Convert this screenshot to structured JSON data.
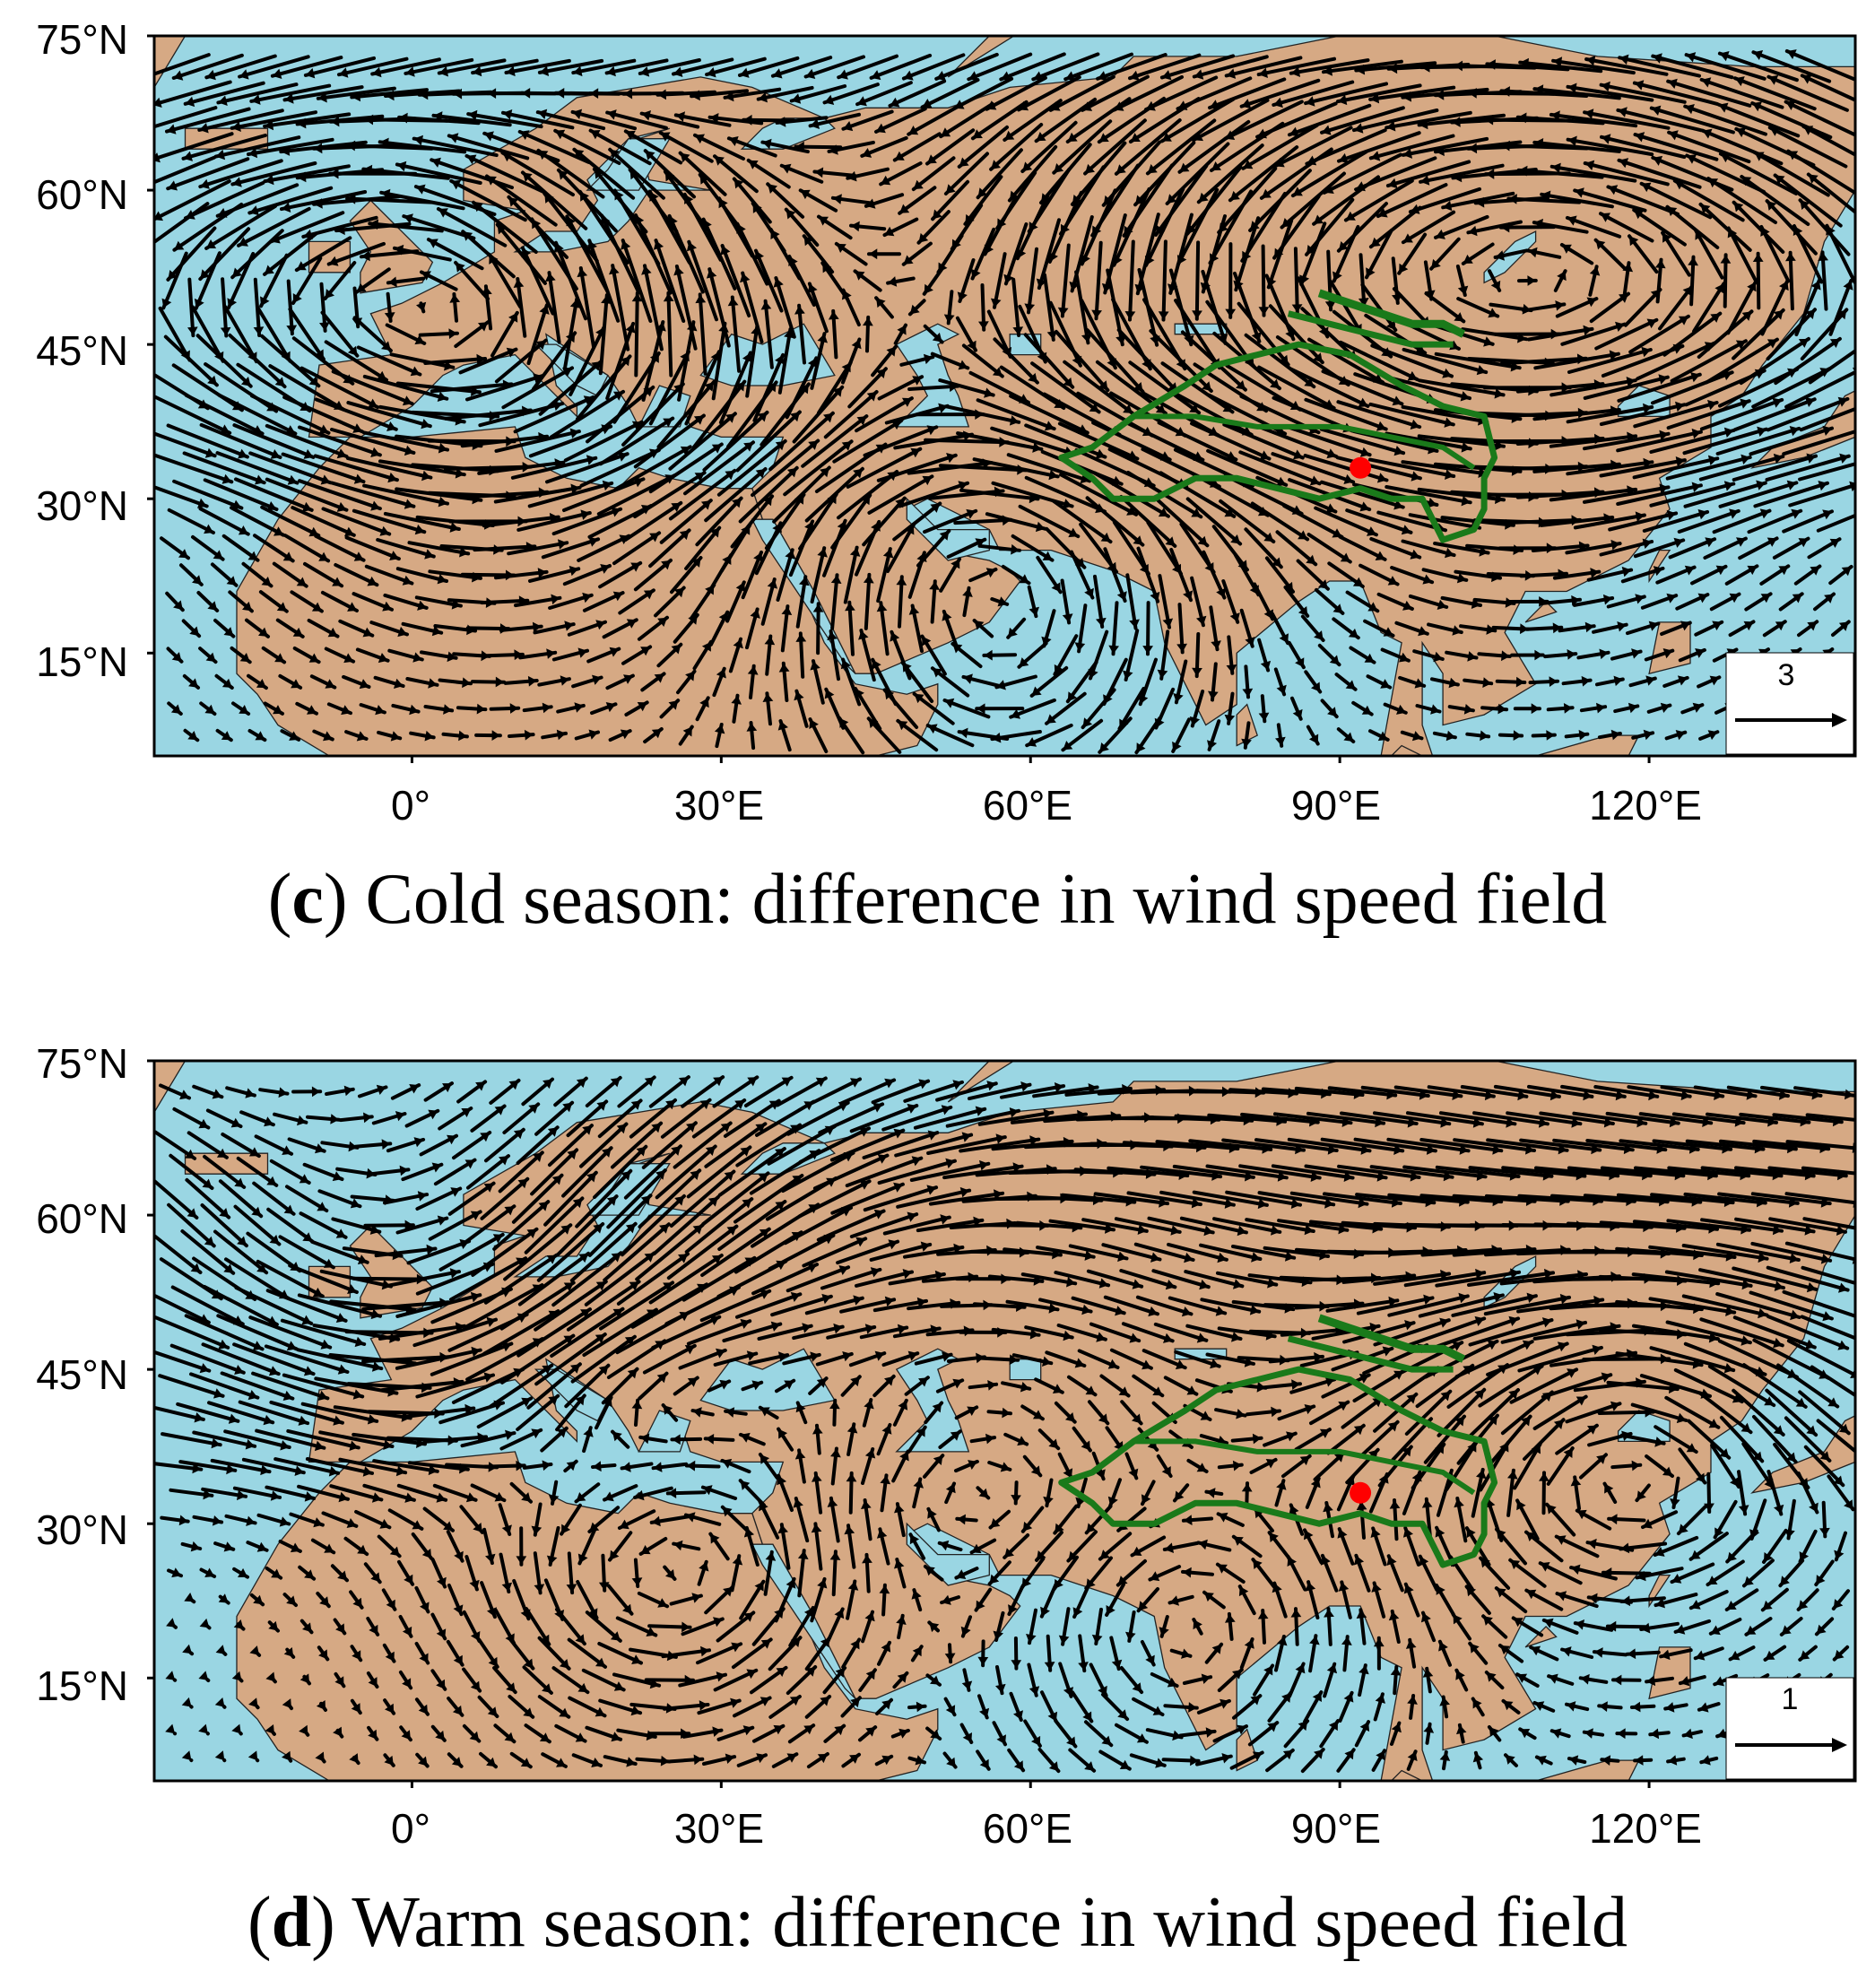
{
  "panels": [
    {
      "letter": "c",
      "caption_text": ") Cold season: difference in wind speed field",
      "lat_ticks": [
        "75°N",
        "60°N",
        "45°N",
        "30°N",
        "15°N"
      ],
      "lon_ticks": [
        "0°",
        "30°E",
        "60°E",
        "90°E",
        "120°E"
      ],
      "reference_vector": "3",
      "flow_pattern": "cold"
    },
    {
      "letter": "d",
      "caption_text": ") Warm season: difference in wind speed field",
      "lat_ticks": [
        "75°N",
        "60°N",
        "45°N",
        "30°N",
        "15°N"
      ],
      "lon_ticks": [
        "0°",
        "30°E",
        "60°E",
        "90°E",
        "120°E"
      ],
      "reference_vector": "1",
      "flow_pattern": "warm"
    }
  ],
  "colors": {
    "ocean": "#9ad6e3",
    "land": "#d6a984",
    "vector": "#000000",
    "basin_outline": "#1a7a1a",
    "station": "#ff0000"
  },
  "map_extent": {
    "lon": [
      -25,
      140
    ],
    "lat": [
      5,
      75
    ]
  },
  "station": {
    "lon": 92,
    "lat": 33
  }
}
